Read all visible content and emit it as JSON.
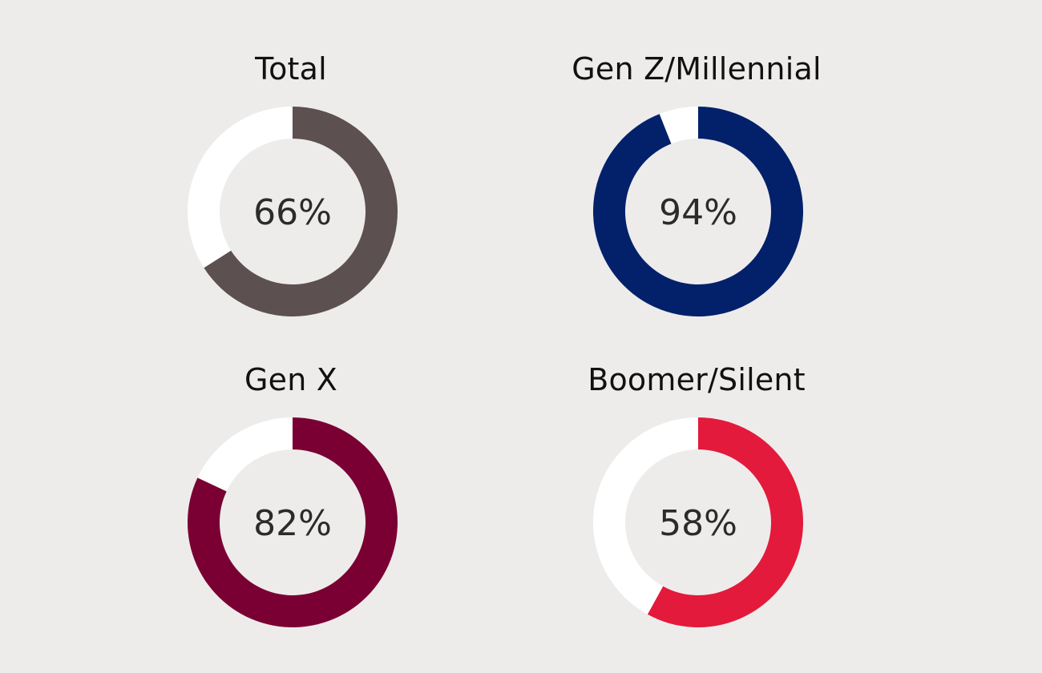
{
  "chart_data": [
    {
      "type": "pie",
      "title": "Total",
      "categories": [
        "",
        ""
      ],
      "values": [
        66,
        34
      ],
      "label": "66%",
      "colors": [
        "#5c5150",
        "#ffffff"
      ]
    },
    {
      "type": "pie",
      "title": "Gen Z/Millennial",
      "categories": [
        "",
        ""
      ],
      "values": [
        94,
        6
      ],
      "label": "94%",
      "colors": [
        "#03216a",
        "#ffffff"
      ]
    },
    {
      "type": "pie",
      "title": "Gen X",
      "categories": [
        "",
        ""
      ],
      "values": [
        82,
        18
      ],
      "label": "82%",
      "colors": [
        "#7a0033",
        "#ffffff"
      ]
    },
    {
      "type": "pie",
      "title": "Boomer/Silent",
      "categories": [
        "",
        ""
      ],
      "values": [
        58,
        42
      ],
      "label": "58%",
      "colors": [
        "#e31a3b",
        "#ffffff"
      ]
    }
  ]
}
